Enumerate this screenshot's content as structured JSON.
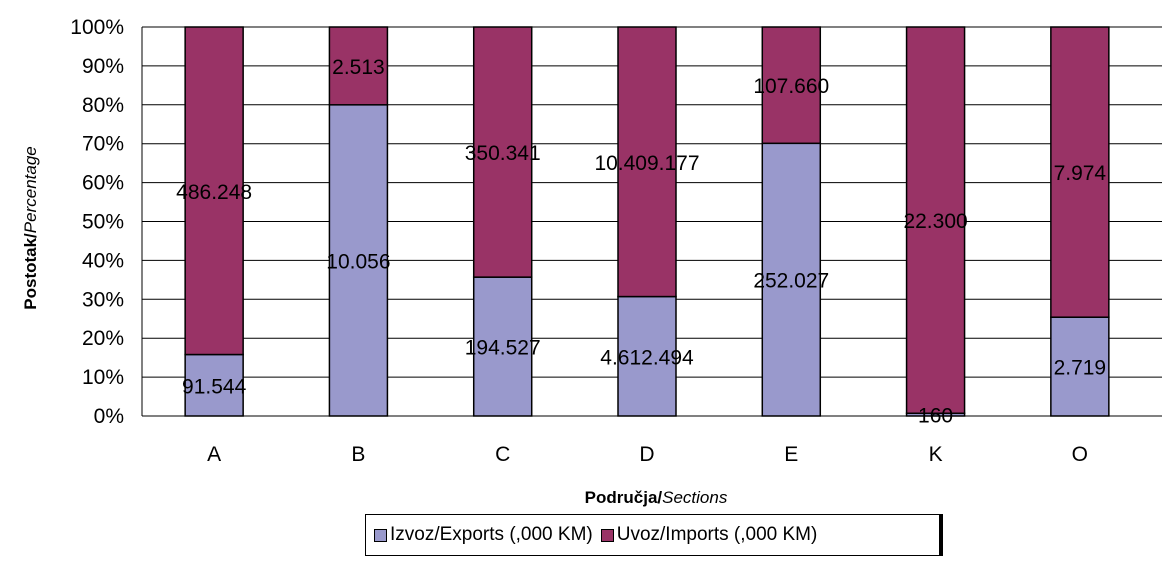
{
  "chart_data": {
    "type": "bar",
    "stacked_percent": true,
    "categories": [
      "A",
      "B",
      "C",
      "D",
      "E",
      "K",
      "O"
    ],
    "series": [
      {
        "name": "Izvoz/Exports (,000 KM)",
        "color": "#9999cc",
        "percent": [
          15.8,
          80.0,
          35.7,
          30.7,
          70.1,
          0.7,
          25.4
        ],
        "labels": [
          "91.544",
          "10.056",
          "194.527",
          "4.612.494",
          "252.027",
          "160",
          "2.719"
        ]
      },
      {
        "name": "Uvoz/Imports (,000 KM)",
        "color": "#993366",
        "percent": [
          84.2,
          20.0,
          64.3,
          69.3,
          29.9,
          99.3,
          74.6
        ],
        "labels": [
          "486.248",
          "2.513",
          "350.341",
          "10.409.177",
          "107.660",
          "22.300",
          "7.974"
        ]
      }
    ],
    "ylim": [
      0,
      100
    ],
    "yticks": [
      "0%",
      "10%",
      "20%",
      "30%",
      "40%",
      "50%",
      "60%",
      "70%",
      "80%",
      "90%",
      "100%"
    ],
    "ylabel_bold": "Postotak/",
    "ylabel_italic": "Percentage",
    "xlabel_bold": "Područja/",
    "xlabel_italic": "Sections",
    "grid": true,
    "legend_position": "bottom"
  }
}
